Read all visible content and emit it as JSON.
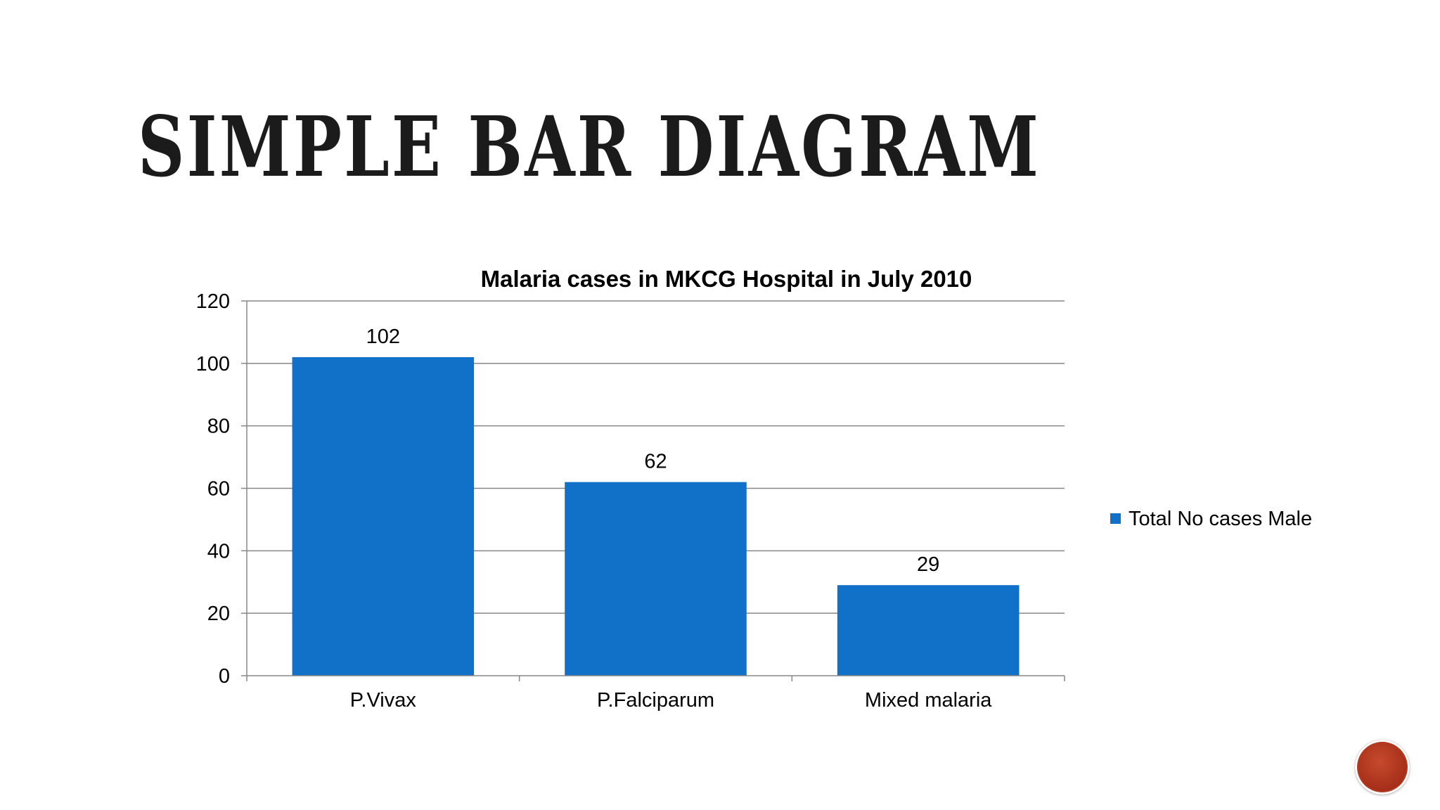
{
  "slide": {
    "title": "Simple Bar Diagram"
  },
  "colors": {
    "bar": "#1170c8",
    "grid": "#878787",
    "badge": "#b23a20"
  },
  "icons": {
    "nav_badge": "slide-nav-circle-icon"
  },
  "chart_data": {
    "type": "bar",
    "title": "Malaria cases in MKCG Hospital in July 2010",
    "categories": [
      "P.Vivax",
      "P.Falciparum",
      "Mixed malaria"
    ],
    "series": [
      {
        "name": "Total No cases Male",
        "values": [
          102,
          62,
          29
        ]
      }
    ],
    "xlabel": "",
    "ylabel": "",
    "ylim": [
      0,
      120
    ],
    "yticks": [
      0,
      20,
      40,
      60,
      80,
      100,
      120
    ],
    "grid": true,
    "data_labels": true,
    "legend_position": "right"
  }
}
